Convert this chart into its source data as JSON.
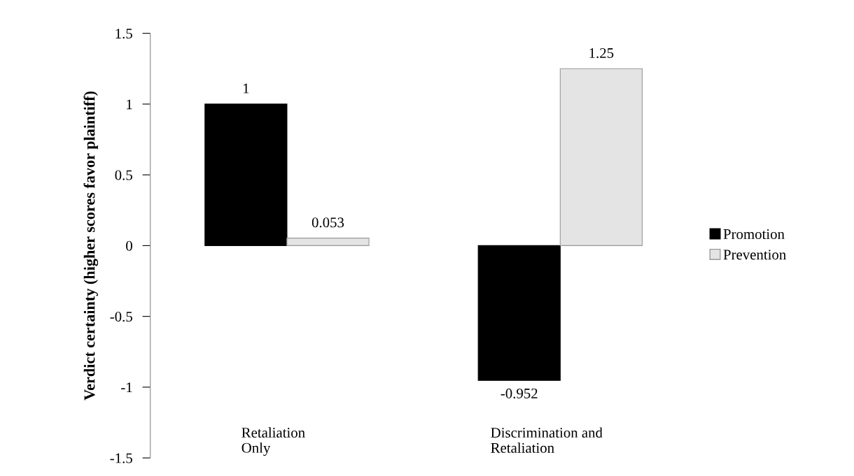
{
  "chart_data": {
    "type": "bar",
    "ylabel": "Verdict certainty (higher scores favor plaintiff)",
    "categories": [
      "Retaliation\nOnly",
      "Discrimination and\nRetaliation"
    ],
    "series": [
      {
        "name": "Promotion",
        "color": "#000000",
        "values": [
          1,
          -0.952
        ]
      },
      {
        "name": "Prevention",
        "color": "#e4e4e4",
        "values": [
          0.053,
          1.25
        ]
      }
    ],
    "ylim": [
      -1.5,
      1.5
    ],
    "yticks": [
      -1.5,
      -1,
      -0.5,
      0,
      0.5,
      1,
      1.5
    ],
    "data_labels": true,
    "grid": false,
    "legend": "right"
  }
}
